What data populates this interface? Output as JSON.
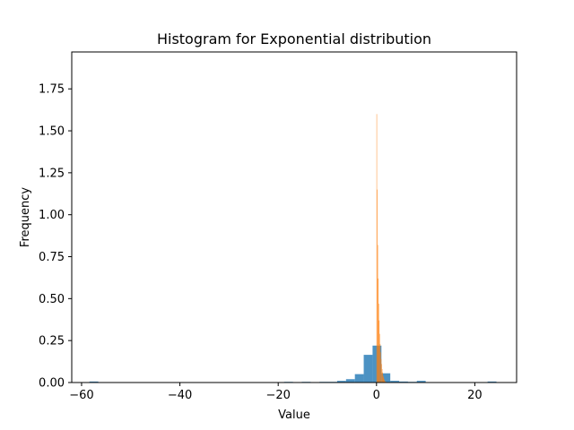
{
  "chart_data": {
    "type": "bar",
    "title": "Histogram for Exponential distribution",
    "xlabel": "Value",
    "ylabel": "Frequency",
    "xlim": [
      -62,
      28.5
    ],
    "ylim": [
      0,
      1.97
    ],
    "xticks": [
      -60,
      -40,
      -20,
      0,
      20
    ],
    "xtick_labels": [
      "−60",
      "−40",
      "−20",
      "0",
      "20"
    ],
    "yticks": [
      0.0,
      0.25,
      0.5,
      0.75,
      1.0,
      1.25,
      1.5,
      1.75
    ],
    "ytick_labels": [
      "0.00",
      "0.25",
      "0.50",
      "0.75",
      "1.00",
      "1.25",
      "1.50",
      "1.75"
    ],
    "grid": false,
    "series": [
      {
        "color": "#1f77b4",
        "opacity": 0.8,
        "bin_edges": [
          -58.4,
          -56.6,
          -54.8,
          -53.0,
          -51.2,
          -49.4,
          -47.6,
          -45.8,
          -44.0,
          -42.2,
          -40.4,
          -38.6,
          -36.8,
          -35.0,
          -33.2,
          -31.4,
          -29.6,
          -27.8,
          -26.0,
          -24.2,
          -22.4,
          -20.6,
          -18.8,
          -17.0,
          -15.2,
          -13.4,
          -11.6,
          -9.8,
          -8.0,
          -6.2,
          -4.4,
          -2.6,
          -0.8,
          1.0,
          2.8,
          4.6,
          6.4,
          8.2,
          10.0,
          11.8,
          13.6,
          15.4,
          17.2,
          19.0,
          20.8,
          22.6,
          24.4
        ],
        "values": [
          0.006,
          0,
          0,
          0,
          0,
          0,
          0,
          0,
          0,
          0,
          0,
          0,
          0,
          0,
          0,
          0,
          0,
          0,
          0,
          0,
          0,
          0,
          0.004,
          0,
          0.004,
          0,
          0.004,
          0.004,
          0.01,
          0.02,
          0.05,
          0.165,
          0.22,
          0.055,
          0.01,
          0.006,
          0.004,
          0.01,
          0,
          0,
          0,
          0,
          0,
          0,
          0,
          0.006
        ]
      },
      {
        "color": "#ff7f0e",
        "opacity": 0.8,
        "bin_edges": [
          0.0,
          0.1,
          0.2,
          0.3,
          0.4,
          0.5,
          0.6,
          0.7,
          0.8,
          0.9,
          1.0,
          1.1,
          1.2,
          1.3,
          1.4,
          1.5,
          1.6,
          1.7,
          1.8,
          1.9,
          2.0
        ],
        "values": [
          1.6,
          1.15,
          0.82,
          0.62,
          0.47,
          0.37,
          0.29,
          0.23,
          0.18,
          0.14,
          0.11,
          0.08,
          0.06,
          0.04,
          0.03,
          0.02,
          0.012,
          0.008,
          0.005,
          0.003
        ]
      }
    ]
  }
}
